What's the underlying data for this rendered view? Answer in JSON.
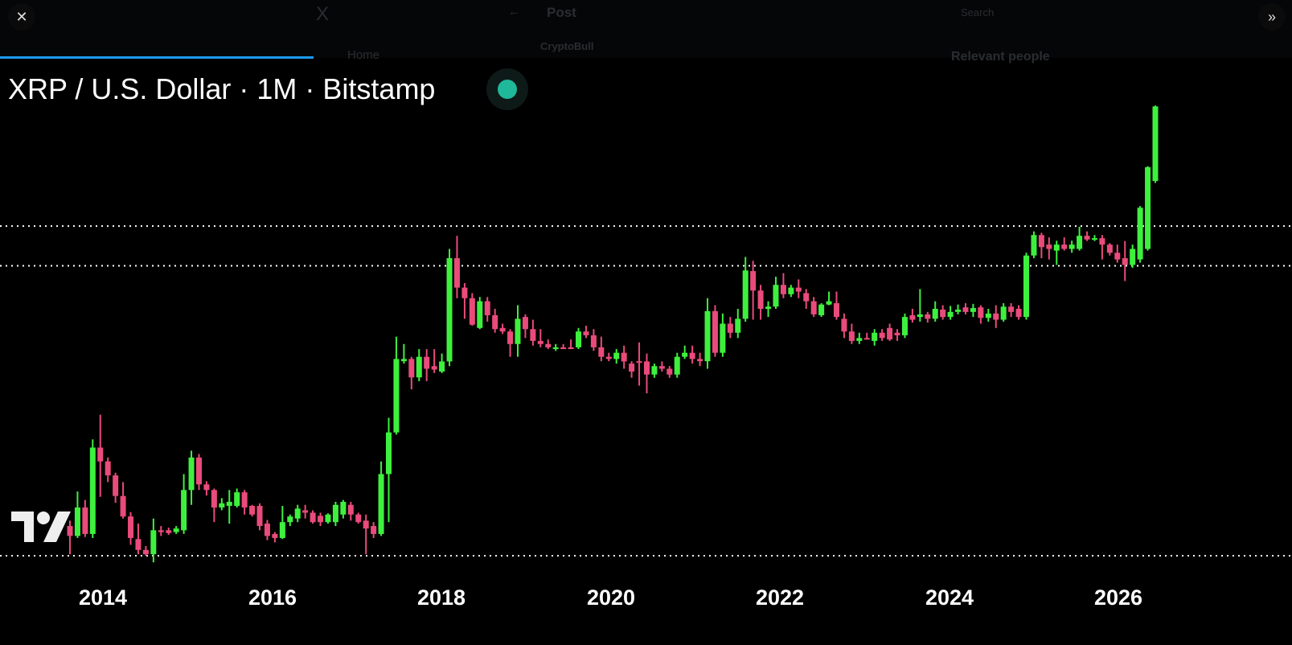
{
  "viewer": {
    "close_icon": "close-icon",
    "next_icon": "double-chevron-right-icon",
    "background": {
      "logo": "X",
      "back_label": "Post",
      "search_placeholder": "Search",
      "nav_home": "Home",
      "author": "CryptoBull",
      "sidebar_heading": "Relevant people"
    }
  },
  "colors": {
    "up": "#3ef03e",
    "down": "#e94b7b",
    "accent": "#1d9bf0",
    "live": "#1fb89a"
  },
  "chart_data": {
    "type": "candlestick",
    "title": "XRP / U.S. Dollar · 1M · Bitstamp",
    "yscale": "log",
    "y_axis_labels": "none",
    "grid": false,
    "ylim": [
      0.0026,
      55
    ],
    "xticks": [
      "2014",
      "2016",
      "2018",
      "2020",
      "2022",
      "2024",
      "2026"
    ],
    "horizontal_levels": [
      0.003,
      1.57,
      3.7
    ],
    "candles_ohlc": [
      [
        0.0057,
        0.0064,
        0.0031,
        0.0046
      ],
      [
        0.0046,
        0.012,
        0.0044,
        0.0085
      ],
      [
        0.0085,
        0.01,
        0.0045,
        0.0048
      ],
      [
        0.0048,
        0.037,
        0.0044,
        0.031
      ],
      [
        0.031,
        0.063,
        0.0107,
        0.023
      ],
      [
        0.023,
        0.025,
        0.0147,
        0.017
      ],
      [
        0.017,
        0.018,
        0.0094,
        0.0109
      ],
      [
        0.0109,
        0.0147,
        0.0067,
        0.007
      ],
      [
        0.007,
        0.0077,
        0.0038,
        0.0044
      ],
      [
        0.0043,
        0.006,
        0.0031,
        0.0034
      ],
      [
        0.0034,
        0.0037,
        0.003,
        0.0031
      ],
      [
        0.0031,
        0.0067,
        0.0026,
        0.0052
      ],
      [
        0.0052,
        0.0057,
        0.0046,
        0.005
      ],
      [
        0.0052,
        0.0055,
        0.0047,
        0.0049
      ],
      [
        0.005,
        0.0057,
        0.0048,
        0.0054
      ],
      [
        0.0052,
        0.0175,
        0.0048,
        0.0124
      ],
      [
        0.0124,
        0.029,
        0.009,
        0.025
      ],
      [
        0.025,
        0.027,
        0.0124,
        0.014
      ],
      [
        0.014,
        0.015,
        0.011,
        0.0124
      ],
      [
        0.0124,
        0.0128,
        0.0062,
        0.0085
      ],
      [
        0.0085,
        0.0104,
        0.008,
        0.0093
      ],
      [
        0.0088,
        0.0124,
        0.006,
        0.0096
      ],
      [
        0.0088,
        0.0128,
        0.0085,
        0.0118
      ],
      [
        0.0118,
        0.0124,
        0.0073,
        0.0085
      ],
      [
        0.0088,
        0.009,
        0.007,
        0.0073
      ],
      [
        0.0088,
        0.0093,
        0.0052,
        0.0057
      ],
      [
        0.006,
        0.0065,
        0.0042,
        0.0046
      ],
      [
        0.0048,
        0.005,
        0.004,
        0.0044
      ],
      [
        0.0044,
        0.0088,
        0.0043,
        0.0062
      ],
      [
        0.0062,
        0.0073,
        0.0057,
        0.007
      ],
      [
        0.0067,
        0.009,
        0.0062,
        0.0083
      ],
      [
        0.008,
        0.009,
        0.0067,
        0.0076
      ],
      [
        0.0076,
        0.008,
        0.006,
        0.0062
      ],
      [
        0.0071,
        0.0076,
        0.0057,
        0.0062
      ],
      [
        0.0062,
        0.0075,
        0.006,
        0.0073
      ],
      [
        0.0062,
        0.0096,
        0.0057,
        0.009
      ],
      [
        0.0073,
        0.01,
        0.0067,
        0.0096
      ],
      [
        0.009,
        0.0096,
        0.0064,
        0.0073
      ],
      [
        0.0073,
        0.0076,
        0.006,
        0.0062
      ],
      [
        0.0064,
        0.0073,
        0.0031,
        0.0054
      ],
      [
        0.0057,
        0.0062,
        0.0044,
        0.0048
      ],
      [
        0.0048,
        0.023,
        0.0046,
        0.0175
      ],
      [
        0.0175,
        0.059,
        0.0062,
        0.043
      ],
      [
        0.043,
        0.34,
        0.041,
        0.21
      ],
      [
        0.2,
        0.29,
        0.19,
        0.21
      ],
      [
        0.21,
        0.22,
        0.109,
        0.141
      ],
      [
        0.141,
        0.26,
        0.13,
        0.22
      ],
      [
        0.22,
        0.26,
        0.13,
        0.17
      ],
      [
        0.18,
        0.26,
        0.155,
        0.167
      ],
      [
        0.16,
        0.236,
        0.155,
        0.199
      ],
      [
        0.199,
        2.26,
        0.18,
        1.85
      ],
      [
        1.85,
        3.0,
        0.78,
        0.98
      ],
      [
        0.98,
        1.08,
        0.5,
        0.78
      ],
      [
        0.78,
        0.87,
        0.43,
        0.44
      ],
      [
        0.41,
        0.8,
        0.4,
        0.73
      ],
      [
        0.73,
        0.8,
        0.47,
        0.54
      ],
      [
        0.54,
        0.62,
        0.37,
        0.4
      ],
      [
        0.41,
        0.45,
        0.36,
        0.38
      ],
      [
        0.38,
        0.4,
        0.22,
        0.29
      ],
      [
        0.29,
        0.67,
        0.22,
        0.5
      ],
      [
        0.52,
        0.55,
        0.33,
        0.4
      ],
      [
        0.4,
        0.49,
        0.28,
        0.31
      ],
      [
        0.31,
        0.4,
        0.27,
        0.29
      ],
      [
        0.29,
        0.32,
        0.26,
        0.27
      ],
      [
        0.26,
        0.29,
        0.25,
        0.27
      ],
      [
        0.27,
        0.29,
        0.26,
        0.26
      ],
      [
        0.27,
        0.32,
        0.26,
        0.26
      ],
      [
        0.27,
        0.41,
        0.26,
        0.38
      ],
      [
        0.38,
        0.43,
        0.33,
        0.35
      ],
      [
        0.35,
        0.4,
        0.25,
        0.27
      ],
      [
        0.27,
        0.34,
        0.2,
        0.22
      ],
      [
        0.22,
        0.24,
        0.2,
        0.21
      ],
      [
        0.21,
        0.26,
        0.19,
        0.24
      ],
      [
        0.24,
        0.28,
        0.17,
        0.199
      ],
      [
        0.19,
        0.2,
        0.14,
        0.16
      ],
      [
        0.2,
        0.3,
        0.118,
        0.199
      ],
      [
        0.199,
        0.236,
        0.1,
        0.15
      ],
      [
        0.15,
        0.19,
        0.14,
        0.18
      ],
      [
        0.18,
        0.199,
        0.16,
        0.17
      ],
      [
        0.17,
        0.18,
        0.14,
        0.15
      ],
      [
        0.15,
        0.24,
        0.14,
        0.22
      ],
      [
        0.22,
        0.28,
        0.21,
        0.24
      ],
      [
        0.24,
        0.28,
        0.19,
        0.21
      ],
      [
        0.21,
        0.24,
        0.18,
        0.2
      ],
      [
        0.2,
        0.78,
        0.17,
        0.59
      ],
      [
        0.59,
        0.67,
        0.22,
        0.24
      ],
      [
        0.24,
        0.56,
        0.22,
        0.45
      ],
      [
        0.45,
        0.52,
        0.33,
        0.37
      ],
      [
        0.37,
        0.62,
        0.33,
        0.5
      ],
      [
        0.5,
        1.9,
        0.47,
        1.42
      ],
      [
        1.4,
        1.75,
        0.49,
        0.92
      ],
      [
        0.92,
        1.04,
        0.49,
        0.62
      ],
      [
        0.62,
        0.73,
        0.52,
        0.65
      ],
      [
        0.65,
        1.24,
        0.62,
        1.04
      ],
      [
        1.04,
        1.34,
        0.78,
        0.85
      ],
      [
        0.85,
        1.04,
        0.8,
        0.98
      ],
      [
        0.98,
        1.17,
        0.78,
        0.9
      ],
      [
        0.87,
        0.95,
        0.62,
        0.73
      ],
      [
        0.73,
        0.8,
        0.52,
        0.55
      ],
      [
        0.54,
        0.7,
        0.52,
        0.68
      ],
      [
        0.68,
        0.9,
        0.67,
        0.73
      ],
      [
        0.7,
        0.9,
        0.49,
        0.52
      ],
      [
        0.5,
        0.56,
        0.33,
        0.38
      ],
      [
        0.38,
        0.45,
        0.29,
        0.31
      ],
      [
        0.31,
        0.37,
        0.29,
        0.33
      ],
      [
        0.33,
        0.37,
        0.32,
        0.32
      ],
      [
        0.31,
        0.4,
        0.28,
        0.37
      ],
      [
        0.37,
        0.4,
        0.31,
        0.33
      ],
      [
        0.41,
        0.45,
        0.31,
        0.32
      ],
      [
        0.37,
        0.4,
        0.31,
        0.35
      ],
      [
        0.35,
        0.56,
        0.33,
        0.52
      ],
      [
        0.54,
        0.62,
        0.46,
        0.49
      ],
      [
        0.52,
        0.95,
        0.47,
        0.55
      ],
      [
        0.55,
        0.58,
        0.46,
        0.5
      ],
      [
        0.5,
        0.73,
        0.47,
        0.62
      ],
      [
        0.61,
        0.67,
        0.49,
        0.52
      ],
      [
        0.52,
        0.66,
        0.49,
        0.58
      ],
      [
        0.58,
        0.68,
        0.55,
        0.61
      ],
      [
        0.64,
        0.7,
        0.55,
        0.58
      ],
      [
        0.58,
        0.69,
        0.52,
        0.63
      ],
      [
        0.64,
        0.67,
        0.45,
        0.51
      ],
      [
        0.51,
        0.62,
        0.47,
        0.56
      ],
      [
        0.56,
        0.67,
        0.41,
        0.49
      ],
      [
        0.49,
        0.7,
        0.47,
        0.65
      ],
      [
        0.65,
        0.7,
        0.52,
        0.58
      ],
      [
        0.62,
        0.67,
        0.49,
        0.52
      ],
      [
        0.52,
        2.08,
        0.49,
        1.96
      ],
      [
        1.96,
        3.3,
        1.85,
        3.05
      ],
      [
        3.05,
        3.2,
        1.85,
        2.35
      ],
      [
        2.48,
        2.9,
        1.8,
        2.26
      ],
      [
        2.18,
        2.7,
        1.6,
        2.48
      ],
      [
        2.48,
        2.9,
        2.18,
        2.26
      ],
      [
        2.26,
        2.7,
        2.08,
        2.48
      ],
      [
        2.26,
        3.65,
        2.18,
        3.0
      ],
      [
        3.0,
        3.3,
        2.68,
        2.77
      ],
      [
        2.77,
        3.05,
        2.68,
        2.85
      ],
      [
        2.85,
        3.05,
        1.8,
        2.48
      ],
      [
        2.48,
        2.56,
        1.96,
        2.08
      ],
      [
        2.08,
        2.48,
        1.68,
        1.8
      ],
      [
        1.85,
        2.68,
        1.13,
        1.6
      ],
      [
        1.6,
        2.48,
        1.5,
        2.26
      ],
      [
        1.8,
        5.7,
        1.68,
        5.5
      ],
      [
        2.26,
        13.5,
        2.18,
        13.2
      ],
      [
        9.8,
        50,
        9.4,
        49
      ]
    ]
  },
  "watermark": {
    "logo": "TV"
  }
}
